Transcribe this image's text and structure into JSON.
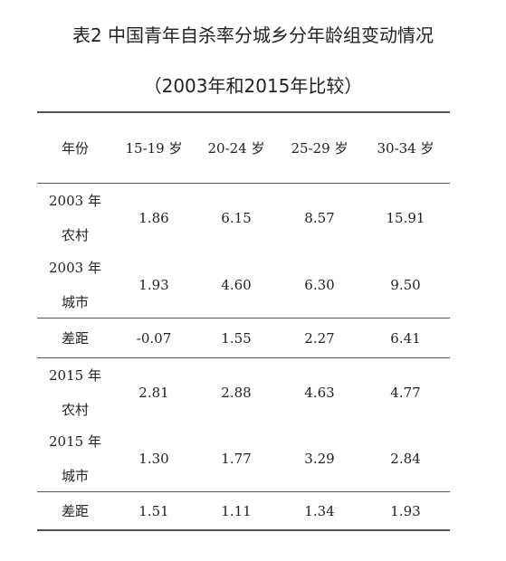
{
  "title_line1": "表2 中国青年自杀率分城乡分年龄组变动情况",
  "title_line2": "（2003年和2015年比较）",
  "table": {
    "headers": [
      "年份",
      "15-19 岁",
      "20-24 岁",
      "25-29 岁",
      "30-34 岁"
    ],
    "rows": [
      {
        "label1": "2003 年",
        "label2": "农村",
        "values": [
          "1.86",
          "6.15",
          "8.57",
          "15.91"
        ]
      },
      {
        "label1": "2003 年",
        "label2": "城市",
        "values": [
          "1.93",
          "4.60",
          "6.30",
          "9.50"
        ]
      },
      {
        "label1": "差距",
        "label2": "",
        "values": [
          "-0.07",
          "1.55",
          "2.27",
          "6.41"
        ]
      },
      {
        "label1": "2015 年",
        "label2": "农村",
        "values": [
          "2.81",
          "2.88",
          "4.63",
          "4.77"
        ]
      },
      {
        "label1": "2015 年",
        "label2": "城市",
        "values": [
          "1.30",
          "1.77",
          "3.29",
          "2.84"
        ]
      },
      {
        "label1": "差距",
        "label2": "",
        "values": [
          "1.51",
          "1.11",
          "1.34",
          "1.93"
        ]
      }
    ]
  }
}
